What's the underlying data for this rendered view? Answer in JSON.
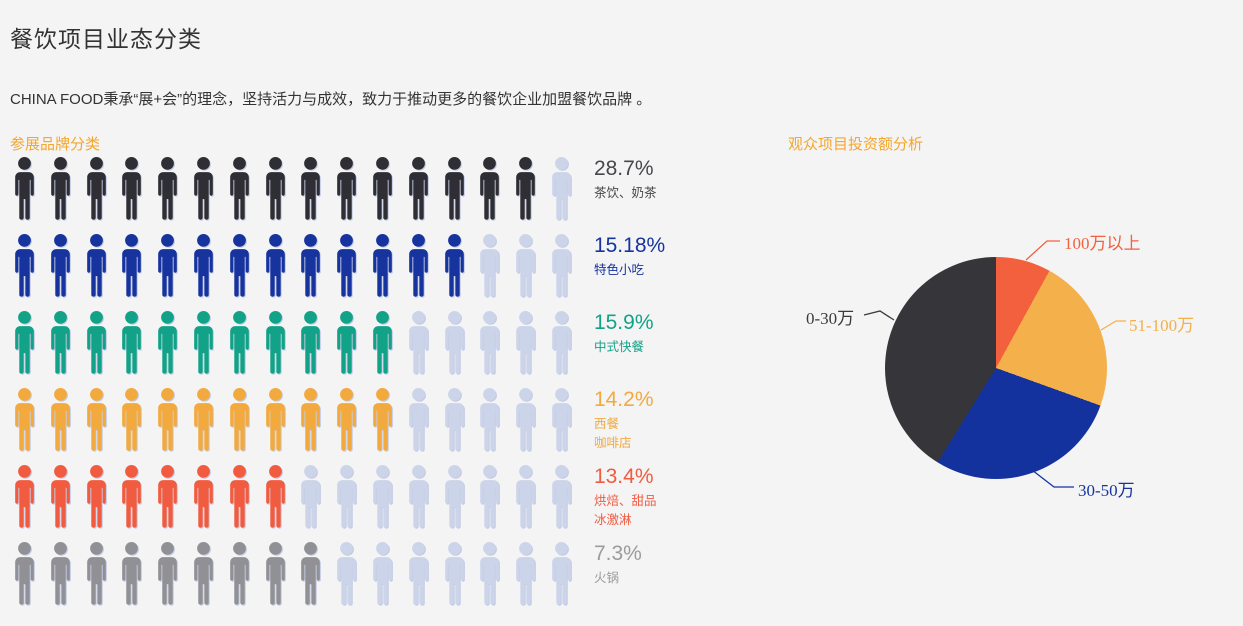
{
  "page": {
    "title": "餐饮项目业态分类",
    "subtitle": "CHINA FOOD秉承“展+会”的理念，坚持活力与成效，致力于推动更多的餐饮企业加盟餐饮品牌 。",
    "background_color": "#f4f4f5"
  },
  "left_section": {
    "title": "参展品牌分类",
    "title_color": "#f5a62c",
    "icons_per_row": 16,
    "empty_icon_color": "#ccd4e9",
    "rows": [
      {
        "percent": "28.7%",
        "label_lines": [
          "茶饮、奶茶"
        ],
        "color": "#2e2e34",
        "text_color": "#47474b",
        "filled": 15
      },
      {
        "percent": "15.18%",
        "label_lines": [
          "特色小吃"
        ],
        "color": "#16339e",
        "text_color": "#16339e",
        "filled": 13
      },
      {
        "percent": "15.9%",
        "label_lines": [
          "中式快餐"
        ],
        "color": "#12a287",
        "text_color": "#12a287",
        "filled": 11
      },
      {
        "percent": "14.2%",
        "label_lines": [
          "西餐",
          "咖啡店"
        ],
        "color": "#f2a93d",
        "text_color": "#f2a93d",
        "filled": 11
      },
      {
        "percent": "13.4%",
        "label_lines": [
          "烘焙、甜品",
          "冰激淋"
        ],
        "color": "#f15b40",
        "text_color": "#f15b40",
        "filled": 8
      },
      {
        "percent": "7.3%",
        "label_lines": [
          "火锅"
        ],
        "color": "#909095",
        "text_color": "#9b9b9b",
        "filled": 9
      }
    ]
  },
  "right_section": {
    "title": "观众项目投资额分析",
    "title_color": "#f5a62c",
    "pie_slices": [
      {
        "label": "100万以上",
        "value_pct": 8,
        "color": "#f2603d",
        "label_color": "#f2603d"
      },
      {
        "label": "51-100万",
        "value_pct": 22.5,
        "color": "#f3b04b",
        "label_color": "#f3b04b"
      },
      {
        "label": "30-50万",
        "value_pct": 28.3,
        "color": "#14329e",
        "label_color": "#16339e"
      },
      {
        "label": "0-30万",
        "value_pct": 41.2,
        "color": "#35353a",
        "label_color": "#3a3a3a"
      }
    ]
  },
  "chart_data": [
    {
      "type": "pictograph",
      "title": "参展品牌分类",
      "categories": [
        "茶饮、奶茶",
        "特色小吃",
        "中式快餐",
        "西餐 咖啡店",
        "烘焙、甜品 冰激淋",
        "火锅"
      ],
      "values": [
        28.7,
        15.18,
        15.9,
        14.2,
        13.4,
        7.3
      ],
      "unit": "%",
      "icons_filled": [
        15,
        13,
        11,
        11,
        8,
        9
      ],
      "icons_total_per_row": 16,
      "colors": [
        "#2e2e34",
        "#16339e",
        "#12a287",
        "#f2a93d",
        "#f15b40",
        "#909095"
      ],
      "empty_icon_color": "#ccd4e9"
    },
    {
      "type": "pie",
      "title": "观众项目投资额分析",
      "categories": [
        "100万以上",
        "51-100万",
        "30-50万",
        "0-30万"
      ],
      "values": [
        8,
        22.5,
        28.3,
        41.2
      ],
      "unit": "% (estimated from slice angles)",
      "start_angle_deg": 0,
      "direction": "clockwise",
      "colors": [
        "#f2603d",
        "#f3b04b",
        "#14329e",
        "#35353a"
      ],
      "legend_position": "outside-callout-labels"
    }
  ]
}
